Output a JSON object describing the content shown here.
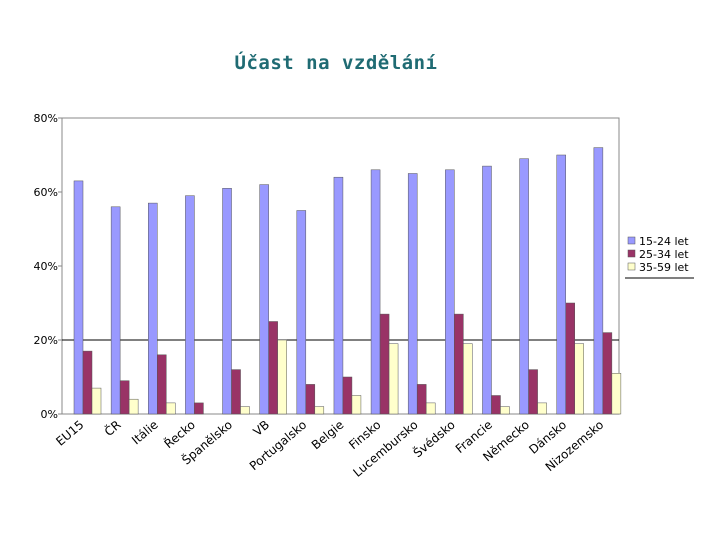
{
  "chart_data": {
    "type": "bar",
    "title": "Účast na vzdělání",
    "xlabel": "",
    "ylabel": "",
    "ylim": [
      0,
      80
    ],
    "yticks": [
      "0%",
      "20%",
      "40%",
      "60%",
      "80%"
    ],
    "grid": "horizontal at 20%",
    "legend_position": "right",
    "categories": [
      "EU15",
      "ČR",
      "Itálie",
      "Řecko",
      "Španělsko",
      "VB",
      "Portugalsko",
      "Belgie",
      "Finsko",
      "Lucembursko",
      "Švédsko",
      "Francie",
      "Německo",
      "Dánsko",
      "Nizozemsko"
    ],
    "series": [
      {
        "name": "15-24 let",
        "color": "#9999ff",
        "values": [
          63,
          56,
          57,
          59,
          61,
          62,
          55,
          64,
          66,
          65,
          66,
          67,
          69,
          70,
          72
        ]
      },
      {
        "name": "25-34 let",
        "color": "#993366",
        "values": [
          17,
          9,
          16,
          3,
          12,
          25,
          8,
          10,
          27,
          8,
          27,
          5,
          12,
          30,
          22
        ]
      },
      {
        "name": "35-59 let",
        "color": "#ffffcc",
        "values": [
          7,
          4,
          3,
          0,
          2,
          20,
          2,
          5,
          19,
          3,
          19,
          2,
          3,
          19,
          11
        ]
      }
    ]
  }
}
